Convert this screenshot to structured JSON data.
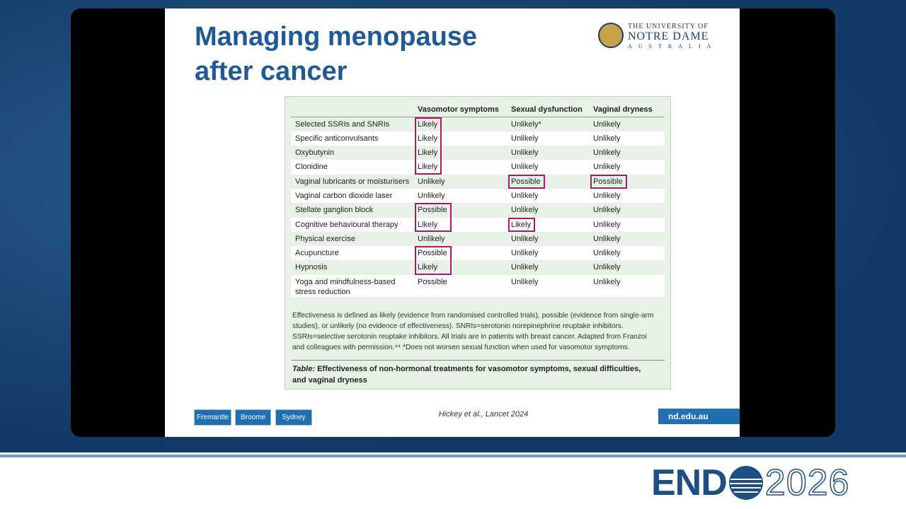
{
  "slide": {
    "title": "Managing menopause after cancer",
    "logo": {
      "line1": "THE UNIVERSITY OF",
      "line2": "NOTRE DAME",
      "line3": "AUSTRALIA"
    },
    "table": {
      "header": [
        "",
        "Vasomotor symptoms",
        "Sexual dysfunction",
        "Vaginal dryness"
      ],
      "rows": [
        [
          {
            "text": "Selected SSRIs and SNRIs"
          },
          {
            "text": "Likely",
            "highlighted": true
          },
          {
            "text": "Unlikely*"
          },
          {
            "text": "Unlikely"
          }
        ],
        [
          {
            "text": "Specific anticonvulsants"
          },
          {
            "text": "Likely",
            "highlighted": true
          },
          {
            "text": "Unlikely"
          },
          {
            "text": "Unlikely"
          }
        ],
        [
          {
            "text": "Oxybutynin"
          },
          {
            "text": "Likely",
            "highlighted": true
          },
          {
            "text": "Unlikely"
          },
          {
            "text": "Unlikely"
          }
        ],
        [
          {
            "text": "Clonidine"
          },
          {
            "text": "Likely",
            "highlighted": true
          },
          {
            "text": "Unlikely"
          },
          {
            "text": "Unlikely"
          }
        ],
        [
          {
            "text": "Vaginal lubricants or moisturisers"
          },
          {
            "text": "Unlikely"
          },
          {
            "text": "Possible",
            "highlighted": true
          },
          {
            "text": "Possible",
            "highlighted": true
          }
        ],
        [
          {
            "text": "Vaginal carbon dioxide laser"
          },
          {
            "text": "Unlikely"
          },
          {
            "text": "Unlikely"
          },
          {
            "text": "Unlikely"
          }
        ],
        [
          {
            "text": "Stellate ganglion block"
          },
          {
            "text": "Possible",
            "highlighted": true
          },
          {
            "text": "Unlikely"
          },
          {
            "text": "Unlikely"
          }
        ],
        [
          {
            "text": "Cognitive behavioural therapy"
          },
          {
            "text": "Likely",
            "highlighted": true
          },
          {
            "text": "Likely",
            "highlighted": true
          },
          {
            "text": "Unlikely"
          }
        ],
        [
          {
            "text": "Physical exercise"
          },
          {
            "text": "Unlikely"
          },
          {
            "text": "Unlikely"
          },
          {
            "text": "Unlikely"
          }
        ],
        [
          {
            "text": "Acupuncture"
          },
          {
            "text": "Possible",
            "highlighted": true
          },
          {
            "text": "Unlikely"
          },
          {
            "text": "Unlikely"
          }
        ],
        [
          {
            "text": "Hypnosis"
          },
          {
            "text": "Likely",
            "highlighted": true
          },
          {
            "text": "Unlikely"
          },
          {
            "text": "Unlikely"
          }
        ],
        [
          {
            "text": "Yoga and mindfulness-based stress reduction"
          },
          {
            "text": "Possible"
          },
          {
            "text": "Unlikely"
          },
          {
            "text": "Unlikely"
          }
        ]
      ],
      "footnote": "Effectiveness is defined as likely (evidence from randomised controlled trials), possible (evidence from single-arm studies), or unlikely (no evidence of effectiveness). SNRIs=serotonin norepinephrine reuptake inhibitors. SSRIs=selective serotonin reuptake inhibitors. All trials are in patients with breast cancer. Adapted from Franzoi and colleagues with permission.⁴⁴ *Does not worsen sexual function when used for vasomotor symptoms.",
      "caption_label": "Table:",
      "caption": "Effectiveness of non-hormonal treatments for vasomotor symptoms, sexual difficulties, and vaginal dryness"
    },
    "campuses": [
      "Fremantle",
      "Broome",
      "Sydney"
    ],
    "citation": "Hickey et al., Lancet 2024",
    "url": "nd.edu.au"
  },
  "branding": {
    "bold": "END",
    "light": "2026"
  }
}
